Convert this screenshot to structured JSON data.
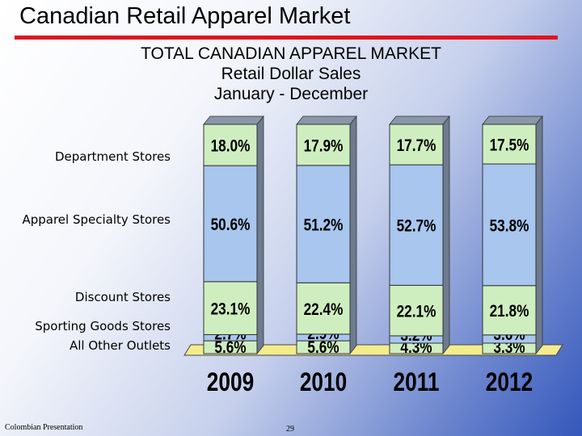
{
  "slide": {
    "title": "Canadian Retail Apparel Market",
    "footer_left": "Colombian Presentation",
    "page_number": "29"
  },
  "colors": {
    "department": "#cfeec0",
    "specialty": "#a8c6ee",
    "discount": "#cfeec0",
    "sporting": "#a8c6ee",
    "other": "#cfeec0",
    "title_rule": "#e0141e",
    "floor": "#f4ec8c"
  },
  "chart_data": {
    "type": "bar",
    "stacked": true,
    "title": "TOTAL CANADIAN APPAREL MARKET",
    "subtitle": [
      "Retail Dollar Sales",
      "January - December"
    ],
    "categories": [
      "2009",
      "2010",
      "2011",
      "2012"
    ],
    "series": [
      {
        "name": "All Other Outlets",
        "values": [
          5.6,
          5.6,
          4.3,
          3.3
        ],
        "labels": [
          "5.6%",
          "5.6%",
          "4.3%",
          "3.3%"
        ]
      },
      {
        "name": "Sporting Goods Stores",
        "values": [
          2.7,
          2.9,
          3.2,
          3.6
        ],
        "labels": [
          "2.7%",
          "2.9%",
          "3.2%",
          "3.6%"
        ]
      },
      {
        "name": "Discount Stores",
        "values": [
          23.1,
          22.4,
          22.1,
          21.8
        ],
        "labels": [
          "23.1%",
          "22.4%",
          "22.1%",
          "21.8%"
        ]
      },
      {
        "name": "Apparel Specialty Stores",
        "values": [
          50.6,
          51.2,
          52.7,
          53.8
        ],
        "labels": [
          "50.6%",
          "51.2%",
          "52.7%",
          "53.8%"
        ]
      },
      {
        "name": "Department Stores",
        "values": [
          18.0,
          17.9,
          17.7,
          17.5
        ],
        "labels": [
          "18.0%",
          "17.9%",
          "17.7%",
          "17.5%"
        ]
      }
    ],
    "ylim": [
      0,
      100
    ]
  }
}
